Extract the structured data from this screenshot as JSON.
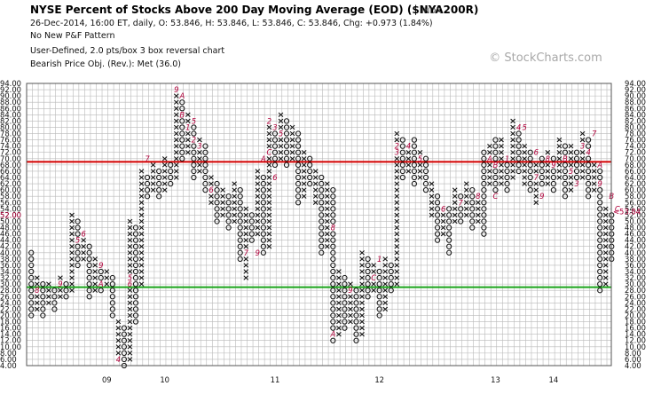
{
  "header": {
    "title": "NYSE Percent of Stocks Above 200 Day Moving Average (EOD) ($NYA200R)",
    "index_tag": "INDX",
    "quote_line": "26-Dec-2014, 16:00 ET, daily, O: 53.846, H: 53.846, L: 53.846, C: 53.846, Chg: +0.973 (1.84%)",
    "pattern_line": "No New P&F Pattern",
    "settings_line": "User-Defined, 2.0 pts/box 3 box reversal chart",
    "target_line": "Bearish Price Obj. (Rev.): Met (36.0)"
  },
  "watermark": "© StockCharts.com",
  "colors": {
    "grid": "#b9b9b9",
    "resistance": "#d40000",
    "support": "#1aa51a",
    "marks": "#111111",
    "month_labels": "#b0003a"
  },
  "chart_data": {
    "type": "point-and-figure",
    "box_size": 2,
    "reversal": 3,
    "y_range": [
      4,
      94
    ],
    "y_tick_labels": [
      "94.00",
      "92.00",
      "90.00",
      "88.00",
      "86.00",
      "84.00",
      "82.00",
      "80.00",
      "78.00",
      "76.00",
      "74.00",
      "72.00",
      "70.00",
      "68.00",
      "66.00",
      "64.00",
      "62.00",
      "60.00",
      "58.00",
      "56.00",
      "54.00",
      "52.00",
      "50.00",
      "48.00",
      "46.00",
      "44.00",
      "42.00",
      "40.00",
      "38.00",
      "36.00",
      "34.00",
      "32.00",
      "30.00",
      "28.00",
      "26.00",
      "24.00",
      "22.00",
      "20.00",
      "18.00",
      "16.00",
      "14.00",
      "12.00",
      "10.00",
      "8.00",
      "6.00",
      "4.00"
    ],
    "x_year_labels": [
      "09",
      "10",
      "11",
      "12",
      "13",
      "14"
    ],
    "resistance_level": 69,
    "support_level": 29,
    "current_value_label": "53.84",
    "left_current_label": "52.00",
    "columns": [
      {
        "type": "O",
        "top": 40,
        "bottom": 20
      },
      {
        "type": "X",
        "top": 32,
        "bottom": 22
      },
      {
        "type": "O",
        "top": 30,
        "bottom": 20
      },
      {
        "type": "X",
        "top": 30,
        "bottom": 24
      },
      {
        "type": "O",
        "top": 28,
        "bottom": 22
      },
      {
        "type": "X",
        "top": 32,
        "bottom": 26
      },
      {
        "type": "O",
        "top": 30,
        "bottom": 26
      },
      {
        "type": "X",
        "top": 52,
        "bottom": 28
      },
      {
        "type": "O",
        "top": 50,
        "bottom": 36
      },
      {
        "type": "X",
        "top": 46,
        "bottom": 38
      },
      {
        "type": "O",
        "top": 42,
        "bottom": 26
      },
      {
        "type": "X",
        "top": 38,
        "bottom": 28
      },
      {
        "type": "O",
        "top": 36,
        "bottom": 28
      },
      {
        "type": "X",
        "top": 34,
        "bottom": 30
      },
      {
        "type": "O",
        "top": 32,
        "bottom": 20
      },
      {
        "type": "X",
        "top": 18,
        "bottom": 6
      },
      {
        "type": "O",
        "top": 16,
        "bottom": 4
      },
      {
        "type": "X",
        "top": 50,
        "bottom": 6
      },
      {
        "type": "O",
        "top": 48,
        "bottom": 18
      },
      {
        "type": "X",
        "top": 66,
        "bottom": 30
      },
      {
        "type": "O",
        "top": 64,
        "bottom": 58
      },
      {
        "type": "X",
        "top": 68,
        "bottom": 60
      },
      {
        "type": "O",
        "top": 66,
        "bottom": 58
      },
      {
        "type": "X",
        "top": 70,
        "bottom": 60
      },
      {
        "type": "O",
        "top": 68,
        "bottom": 62
      },
      {
        "type": "X",
        "top": 92,
        "bottom": 64
      },
      {
        "type": "O",
        "top": 90,
        "bottom": 70
      },
      {
        "type": "X",
        "top": 84,
        "bottom": 72
      },
      {
        "type": "O",
        "top": 82,
        "bottom": 64
      },
      {
        "type": "X",
        "top": 76,
        "bottom": 66
      },
      {
        "type": "O",
        "top": 74,
        "bottom": 60
      },
      {
        "type": "X",
        "top": 64,
        "bottom": 56
      },
      {
        "type": "O",
        "top": 62,
        "bottom": 50
      },
      {
        "type": "X",
        "top": 60,
        "bottom": 52
      },
      {
        "type": "O",
        "top": 58,
        "bottom": 48
      },
      {
        "type": "X",
        "top": 62,
        "bottom": 50
      },
      {
        "type": "O",
        "top": 60,
        "bottom": 38
      },
      {
        "type": "X",
        "top": 54,
        "bottom": 32
      },
      {
        "type": "O",
        "top": 52,
        "bottom": 44
      },
      {
        "type": "X",
        "top": 66,
        "bottom": 46
      },
      {
        "type": "O",
        "top": 64,
        "bottom": 40
      },
      {
        "type": "X",
        "top": 80,
        "bottom": 42
      },
      {
        "type": "O",
        "top": 78,
        "bottom": 68
      },
      {
        "type": "X",
        "top": 84,
        "bottom": 70
      },
      {
        "type": "O",
        "top": 82,
        "bottom": 68
      },
      {
        "type": "X",
        "top": 80,
        "bottom": 70
      },
      {
        "type": "O",
        "top": 78,
        "bottom": 56
      },
      {
        "type": "X",
        "top": 72,
        "bottom": 58
      },
      {
        "type": "O",
        "top": 70,
        "bottom": 62
      },
      {
        "type": "X",
        "top": 66,
        "bottom": 56
      },
      {
        "type": "O",
        "top": 64,
        "bottom": 40
      },
      {
        "type": "X",
        "top": 62,
        "bottom": 42
      },
      {
        "type": "O",
        "top": 60,
        "bottom": 12
      },
      {
        "type": "X",
        "top": 34,
        "bottom": 14
      },
      {
        "type": "O",
        "top": 32,
        "bottom": 16
      },
      {
        "type": "X",
        "top": 30,
        "bottom": 18
      },
      {
        "type": "O",
        "top": 28,
        "bottom": 12
      },
      {
        "type": "X",
        "top": 40,
        "bottom": 14
      },
      {
        "type": "O",
        "top": 38,
        "bottom": 26
      },
      {
        "type": "X",
        "top": 36,
        "bottom": 28
      },
      {
        "type": "O",
        "top": 34,
        "bottom": 20
      },
      {
        "type": "X",
        "top": 38,
        "bottom": 22
      },
      {
        "type": "O",
        "top": 36,
        "bottom": 28
      },
      {
        "type": "X",
        "top": 78,
        "bottom": 30
      },
      {
        "type": "O",
        "top": 76,
        "bottom": 64
      },
      {
        "type": "X",
        "top": 74,
        "bottom": 66
      },
      {
        "type": "O",
        "top": 76,
        "bottom": 62
      },
      {
        "type": "X",
        "top": 72,
        "bottom": 64
      },
      {
        "type": "O",
        "top": 70,
        "bottom": 60
      },
      {
        "type": "X",
        "top": 62,
        "bottom": 52
      },
      {
        "type": "O",
        "top": 58,
        "bottom": 44
      },
      {
        "type": "X",
        "top": 52,
        "bottom": 46
      },
      {
        "type": "O",
        "top": 54,
        "bottom": 40
      },
      {
        "type": "X",
        "top": 60,
        "bottom": 50
      },
      {
        "type": "O",
        "top": 58,
        "bottom": 50
      },
      {
        "type": "X",
        "top": 62,
        "bottom": 52
      },
      {
        "type": "O",
        "top": 60,
        "bottom": 48
      },
      {
        "type": "X",
        "top": 56,
        "bottom": 50
      },
      {
        "type": "O",
        "top": 72,
        "bottom": 46
      },
      {
        "type": "X",
        "top": 74,
        "bottom": 62
      },
      {
        "type": "O",
        "top": 76,
        "bottom": 58
      },
      {
        "type": "X",
        "top": 76,
        "bottom": 62
      },
      {
        "type": "O",
        "top": 70,
        "bottom": 60
      },
      {
        "type": "X",
        "top": 82,
        "bottom": 64
      },
      {
        "type": "O",
        "top": 80,
        "bottom": 66
      },
      {
        "type": "X",
        "top": 74,
        "bottom": 62
      },
      {
        "type": "O",
        "top": 72,
        "bottom": 60
      },
      {
        "type": "X",
        "top": 68,
        "bottom": 56
      },
      {
        "type": "O",
        "top": 70,
        "bottom": 62
      },
      {
        "type": "X",
        "top": 72,
        "bottom": 62
      },
      {
        "type": "O",
        "top": 70,
        "bottom": 60
      },
      {
        "type": "X",
        "top": 76,
        "bottom": 64
      },
      {
        "type": "O",
        "top": 74,
        "bottom": 58
      },
      {
        "type": "X",
        "top": 74,
        "bottom": 60
      },
      {
        "type": "O",
        "top": 72,
        "bottom": 62
      },
      {
        "type": "X",
        "top": 78,
        "bottom": 64
      },
      {
        "type": "O",
        "top": 76,
        "bottom": 58
      },
      {
        "type": "X",
        "top": 68,
        "bottom": 60
      },
      {
        "type": "O",
        "top": 66,
        "bottom": 28
      },
      {
        "type": "X",
        "top": 54,
        "bottom": 30
      },
      {
        "type": "O",
        "top": 52,
        "bottom": 38
      }
    ],
    "month_markers": [
      {
        "col": 1,
        "label": "8",
        "value": 28
      },
      {
        "col": 5,
        "label": "9",
        "value": 30
      },
      {
        "col": 8,
        "label": "5",
        "value": 44
      },
      {
        "col": 9,
        "label": "6",
        "value": 46
      },
      {
        "col": 12,
        "label": "9",
        "value": 36
      },
      {
        "col": 12,
        "label": "A",
        "value": 30
      },
      {
        "col": 15,
        "label": "4",
        "value": 6
      },
      {
        "col": 17,
        "label": "5",
        "value": 32
      },
      {
        "col": 17,
        "label": "6",
        "value": 30
      },
      {
        "col": 20,
        "label": "7",
        "value": 70
      },
      {
        "col": 25,
        "label": "9",
        "value": 92
      },
      {
        "col": 26,
        "label": "A",
        "value": 90
      },
      {
        "col": 26,
        "label": "B",
        "value": 84
      },
      {
        "col": 27,
        "label": "1",
        "value": 80
      },
      {
        "col": 28,
        "label": "5",
        "value": 82
      },
      {
        "col": 28,
        "label": "2",
        "value": 76
      },
      {
        "col": 29,
        "label": "3",
        "value": 74
      },
      {
        "col": 31,
        "label": "6",
        "value": 60
      },
      {
        "col": 37,
        "label": "7",
        "value": 40
      },
      {
        "col": 39,
        "label": "9",
        "value": 40
      },
      {
        "col": 41,
        "label": "2",
        "value": 82
      },
      {
        "col": 42,
        "label": "3",
        "value": 80
      },
      {
        "col": 43,
        "label": "5",
        "value": 78
      },
      {
        "col": 40,
        "label": "A",
        "value": 70
      },
      {
        "col": 41,
        "label": "C",
        "value": 72
      },
      {
        "col": 42,
        "label": "6",
        "value": 64
      },
      {
        "col": 52,
        "label": "8",
        "value": 48
      },
      {
        "col": 52,
        "label": "A",
        "value": 14
      },
      {
        "col": 55,
        "label": "9",
        "value": 28
      },
      {
        "col": 59,
        "label": "C",
        "value": 32
      },
      {
        "col": 60,
        "label": "1",
        "value": 38
      },
      {
        "col": 63,
        "label": "2",
        "value": 74
      },
      {
        "col": 63,
        "label": "3",
        "value": 72
      },
      {
        "col": 65,
        "label": "4",
        "value": 74
      },
      {
        "col": 67,
        "label": "5",
        "value": 70
      },
      {
        "col": 71,
        "label": "6",
        "value": 54
      },
      {
        "col": 74,
        "label": "7",
        "value": 56
      },
      {
        "col": 77,
        "label": "8",
        "value": 58
      },
      {
        "col": 79,
        "label": "A",
        "value": 70
      },
      {
        "col": 80,
        "label": "B",
        "value": 68
      },
      {
        "col": 80,
        "label": "C",
        "value": 58
      },
      {
        "col": 82,
        "label": "1",
        "value": 70
      },
      {
        "col": 84,
        "label": "4",
        "value": 80
      },
      {
        "col": 85,
        "label": "5",
        "value": 80
      },
      {
        "col": 87,
        "label": "6",
        "value": 72
      },
      {
        "col": 87,
        "label": "7",
        "value": 64
      },
      {
        "col": 88,
        "label": "9",
        "value": 58
      },
      {
        "col": 89,
        "label": "8",
        "value": 70
      },
      {
        "col": 90,
        "label": "9",
        "value": 68
      },
      {
        "col": 92,
        "label": "B",
        "value": 70
      },
      {
        "col": 93,
        "label": "5",
        "value": 66
      },
      {
        "col": 94,
        "label": "3",
        "value": 62
      },
      {
        "col": 95,
        "label": "3",
        "value": 74
      },
      {
        "col": 96,
        "label": "4",
        "value": 72
      },
      {
        "col": 97,
        "label": "7",
        "value": 78
      },
      {
        "col": 98,
        "label": "A",
        "value": 68
      },
      {
        "col": 98,
        "label": "9",
        "value": 62
      },
      {
        "col": 100,
        "label": "B",
        "value": 58
      },
      {
        "col": 101,
        "label": "C",
        "value": 54
      }
    ]
  }
}
